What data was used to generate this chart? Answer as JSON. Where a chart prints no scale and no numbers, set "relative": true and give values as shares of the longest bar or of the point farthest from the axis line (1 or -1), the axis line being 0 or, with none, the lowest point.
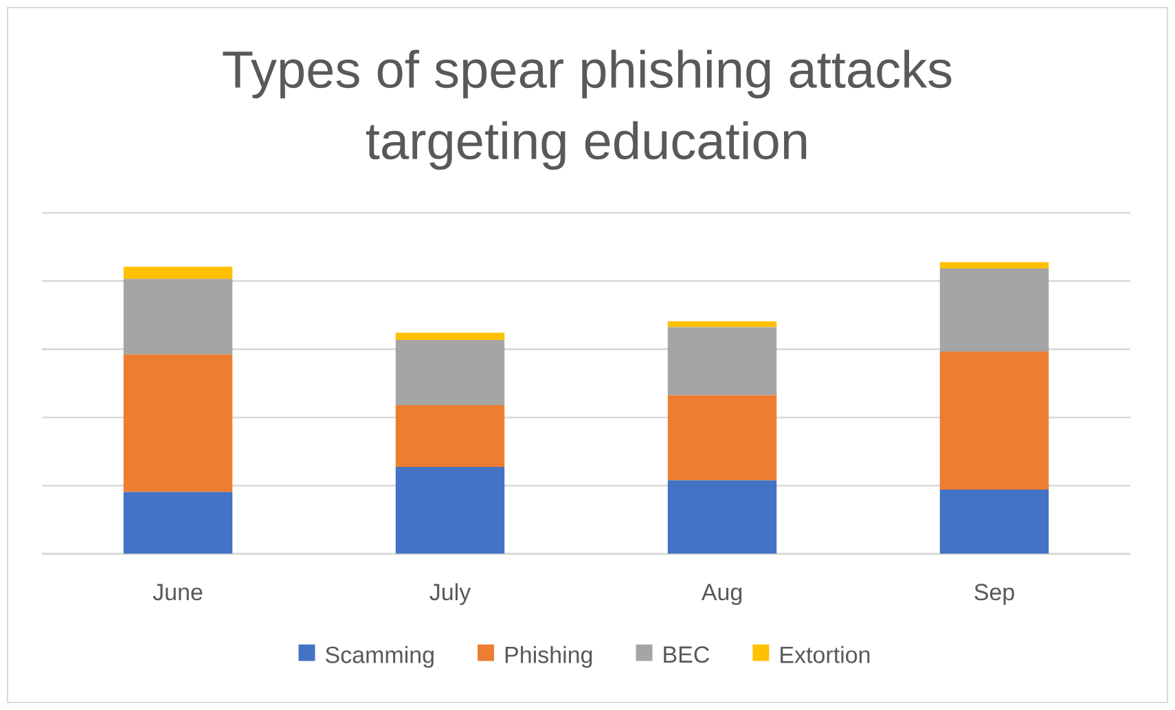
{
  "chart_data": {
    "type": "bar",
    "title": "Types of spear phishing attacks targeting education",
    "categories": [
      "June",
      "July",
      "Aug",
      "Sep"
    ],
    "series": [
      {
        "name": "Scamming",
        "color": "#4472c4",
        "values": [
          0.212,
          0.298,
          0.252,
          0.22
        ]
      },
      {
        "name": "Phishing",
        "color": "#ed7d31",
        "values": [
          0.471,
          0.212,
          0.292,
          0.473
        ]
      },
      {
        "name": "BEC",
        "color": "#a5a5a5",
        "values": [
          0.259,
          0.223,
          0.233,
          0.285
        ]
      },
      {
        "name": "Extortion",
        "color": "#ffc000",
        "values": [
          0.042,
          0.025,
          0.02,
          0.022
        ]
      }
    ],
    "stacked": true,
    "relative": true,
    "grid": "y",
    "legend": "bottom"
  }
}
